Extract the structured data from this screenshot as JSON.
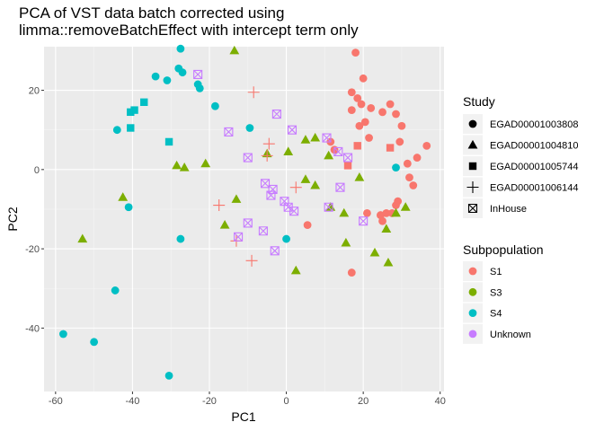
{
  "chart_data": {
    "type": "scatter",
    "title_lines": [
      "PCA of VST data batch corrected using",
      "limma::removeBatchEffect with intercept term only"
    ],
    "xlabel": "PC1",
    "ylabel": "PC2",
    "xlim": [
      -63,
      41
    ],
    "ylim": [
      -56,
      31
    ],
    "xticks": [
      -60,
      -40,
      -20,
      0,
      20,
      40
    ],
    "yticks": [
      -40,
      -20,
      0,
      20
    ],
    "xtick_labels": [
      "-60",
      "-40",
      "-20",
      "0",
      "20",
      "40"
    ],
    "ytick_labels": [
      "-40",
      "-20",
      "0",
      "20"
    ],
    "grid": true,
    "legend_position": "right",
    "shape_legend": {
      "title": "Study",
      "entries": [
        {
          "label": "EGAD00001003808",
          "shape": "circle"
        },
        {
          "label": "EGAD00001004810",
          "shape": "triangle"
        },
        {
          "label": "EGAD00001005744",
          "shape": "square"
        },
        {
          "label": "EGAD00001006144",
          "shape": "plus"
        },
        {
          "label": "InHouse",
          "shape": "boxx"
        }
      ]
    },
    "color_legend": {
      "title": "Subpopulation",
      "entries": [
        {
          "label": "S1",
          "color": "#F8766D"
        },
        {
          "label": "S3",
          "color": "#7CAE00"
        },
        {
          "label": "S4",
          "color": "#00BFC4"
        },
        {
          "label": "Unknown",
          "color": "#C77CFF"
        }
      ]
    },
    "points": [
      {
        "x": 18,
        "y": 29.5,
        "study": "EGAD00001003808",
        "sub": "S1"
      },
      {
        "x": 20,
        "y": 23,
        "study": "EGAD00001003808",
        "sub": "S1"
      },
      {
        "x": 17,
        "y": 19.5,
        "study": "EGAD00001003808",
        "sub": "S1"
      },
      {
        "x": 18.5,
        "y": 18,
        "study": "EGAD00001003808",
        "sub": "S1"
      },
      {
        "x": 19.5,
        "y": 16.5,
        "study": "EGAD00001003808",
        "sub": "S1"
      },
      {
        "x": 17,
        "y": 15,
        "study": "EGAD00001003808",
        "sub": "S1"
      },
      {
        "x": 22,
        "y": 15.5,
        "study": "EGAD00001003808",
        "sub": "S1"
      },
      {
        "x": 25,
        "y": 14.5,
        "study": "EGAD00001003808",
        "sub": "S1"
      },
      {
        "x": 27,
        "y": 16.5,
        "study": "EGAD00001003808",
        "sub": "S1"
      },
      {
        "x": 28.5,
        "y": 14,
        "study": "EGAD00001003808",
        "sub": "S1"
      },
      {
        "x": 20.5,
        "y": 12,
        "study": "EGAD00001003808",
        "sub": "S1"
      },
      {
        "x": 19,
        "y": 11,
        "study": "EGAD00001003808",
        "sub": "S1"
      },
      {
        "x": 30,
        "y": 11,
        "study": "EGAD00001003808",
        "sub": "S1"
      },
      {
        "x": 29.5,
        "y": 7,
        "study": "EGAD00001003808",
        "sub": "S1"
      },
      {
        "x": 21.5,
        "y": 8,
        "study": "EGAD00001003808",
        "sub": "S1"
      },
      {
        "x": 36.5,
        "y": 6,
        "study": "EGAD00001003808",
        "sub": "S1"
      },
      {
        "x": 34,
        "y": 3,
        "study": "EGAD00001003808",
        "sub": "S1"
      },
      {
        "x": 31.5,
        "y": 1.5,
        "study": "EGAD00001003808",
        "sub": "S1"
      },
      {
        "x": 32,
        "y": -2,
        "study": "EGAD00001003808",
        "sub": "S1"
      },
      {
        "x": 33,
        "y": -4,
        "study": "EGAD00001003808",
        "sub": "S1"
      },
      {
        "x": 29,
        "y": -8,
        "study": "EGAD00001003808",
        "sub": "S1"
      },
      {
        "x": 28.5,
        "y": -9,
        "study": "EGAD00001003808",
        "sub": "S1"
      },
      {
        "x": 21,
        "y": -11,
        "study": "EGAD00001003808",
        "sub": "S1"
      },
      {
        "x": 24.5,
        "y": -11.5,
        "study": "EGAD00001003808",
        "sub": "S1"
      },
      {
        "x": 26,
        "y": -11,
        "study": "EGAD00001003808",
        "sub": "S1"
      },
      {
        "x": 27.5,
        "y": -11,
        "study": "EGAD00001003808",
        "sub": "S1"
      },
      {
        "x": 25,
        "y": -13,
        "study": "EGAD00001003808",
        "sub": "S1"
      },
      {
        "x": 11.5,
        "y": 7,
        "study": "EGAD00001003808",
        "sub": "S1"
      },
      {
        "x": 12.5,
        "y": 5,
        "study": "EGAD00001003808",
        "sub": "S1"
      },
      {
        "x": 5.5,
        "y": -14,
        "study": "EGAD00001003808",
        "sub": "S1"
      },
      {
        "x": 17,
        "y": -26,
        "study": "EGAD00001003808",
        "sub": "S1"
      },
      {
        "x": -27.5,
        "y": 30.5,
        "study": "EGAD00001003808",
        "sub": "S4"
      },
      {
        "x": -34,
        "y": 23.5,
        "study": "EGAD00001003808",
        "sub": "S4"
      },
      {
        "x": -31,
        "y": 22.5,
        "study": "EGAD00001003808",
        "sub": "S4"
      },
      {
        "x": -28,
        "y": 25.5,
        "study": "EGAD00001003808",
        "sub": "S4"
      },
      {
        "x": -27,
        "y": 24.5,
        "study": "EGAD00001003808",
        "sub": "S4"
      },
      {
        "x": -23,
        "y": 21.5,
        "study": "EGAD00001003808",
        "sub": "S4"
      },
      {
        "x": -22.5,
        "y": 20.5,
        "study": "EGAD00001003808",
        "sub": "S4"
      },
      {
        "x": -18.5,
        "y": 16,
        "study": "EGAD00001003808",
        "sub": "S4"
      },
      {
        "x": -9.5,
        "y": 10.5,
        "study": "EGAD00001003808",
        "sub": "S4"
      },
      {
        "x": -44,
        "y": 10,
        "study": "EGAD00001003808",
        "sub": "S4"
      },
      {
        "x": -41,
        "y": -9.5,
        "study": "EGAD00001003808",
        "sub": "S4"
      },
      {
        "x": -27.5,
        "y": -17.5,
        "study": "EGAD00001003808",
        "sub": "S4"
      },
      {
        "x": 0,
        "y": -17.5,
        "study": "EGAD00001003808",
        "sub": "S4"
      },
      {
        "x": -44.5,
        "y": -30.5,
        "study": "EGAD00001003808",
        "sub": "S4"
      },
      {
        "x": -58,
        "y": -41.5,
        "study": "EGAD00001003808",
        "sub": "S4"
      },
      {
        "x": -50,
        "y": -43.5,
        "study": "EGAD00001003808",
        "sub": "S4"
      },
      {
        "x": -30.5,
        "y": -52,
        "study": "EGAD00001003808",
        "sub": "S4"
      },
      {
        "x": 28.5,
        "y": 0.5,
        "study": "EGAD00001003808",
        "sub": "S4"
      },
      {
        "x": -13.5,
        "y": 30,
        "study": "EGAD00001004810",
        "sub": "S3"
      },
      {
        "x": 5,
        "y": 7.5,
        "study": "EGAD00001004810",
        "sub": "S3"
      },
      {
        "x": 7.5,
        "y": 8,
        "study": "EGAD00001004810",
        "sub": "S3"
      },
      {
        "x": 0.5,
        "y": 4.5,
        "study": "EGAD00001004810",
        "sub": "S3"
      },
      {
        "x": -5,
        "y": 4,
        "study": "EGAD00001004810",
        "sub": "S3"
      },
      {
        "x": 11,
        "y": 3.5,
        "study": "EGAD00001004810",
        "sub": "S3"
      },
      {
        "x": -28.5,
        "y": 1,
        "study": "EGAD00001004810",
        "sub": "S3"
      },
      {
        "x": -26.5,
        "y": 0.5,
        "study": "EGAD00001004810",
        "sub": "S3"
      },
      {
        "x": -21,
        "y": 1.5,
        "study": "EGAD00001004810",
        "sub": "S3"
      },
      {
        "x": 5,
        "y": -2.5,
        "study": "EGAD00001004810",
        "sub": "S3"
      },
      {
        "x": 7.5,
        "y": -4,
        "study": "EGAD00001004810",
        "sub": "S3"
      },
      {
        "x": 19,
        "y": -2,
        "study": "EGAD00001004810",
        "sub": "S3"
      },
      {
        "x": -42.5,
        "y": -7,
        "study": "EGAD00001004810",
        "sub": "S3"
      },
      {
        "x": -13,
        "y": -7.5,
        "study": "EGAD00001004810",
        "sub": "S3"
      },
      {
        "x": -16,
        "y": -14,
        "study": "EGAD00001004810",
        "sub": "S3"
      },
      {
        "x": 11.5,
        "y": -9.5,
        "study": "EGAD00001004810",
        "sub": "S3"
      },
      {
        "x": 15,
        "y": -11,
        "study": "EGAD00001004810",
        "sub": "S3"
      },
      {
        "x": 28.5,
        "y": -11,
        "study": "EGAD00001004810",
        "sub": "S3"
      },
      {
        "x": 31,
        "y": -9.5,
        "study": "EGAD00001004810",
        "sub": "S3"
      },
      {
        "x": 26,
        "y": -15,
        "study": "EGAD00001004810",
        "sub": "S3"
      },
      {
        "x": 15.5,
        "y": -18.5,
        "study": "EGAD00001004810",
        "sub": "S3"
      },
      {
        "x": -53,
        "y": -17.5,
        "study": "EGAD00001004810",
        "sub": "S3"
      },
      {
        "x": 23,
        "y": -21,
        "study": "EGAD00001004810",
        "sub": "S3"
      },
      {
        "x": 26.5,
        "y": -23.5,
        "study": "EGAD00001004810",
        "sub": "S3"
      },
      {
        "x": 2.5,
        "y": -25.5,
        "study": "EGAD00001004810",
        "sub": "S3"
      },
      {
        "x": -37,
        "y": 17,
        "study": "EGAD00001005744",
        "sub": "S4"
      },
      {
        "x": -39.5,
        "y": 15,
        "study": "EGAD00001005744",
        "sub": "S4"
      },
      {
        "x": -40.5,
        "y": 14.5,
        "study": "EGAD00001005744",
        "sub": "S4"
      },
      {
        "x": -40.5,
        "y": 10.5,
        "study": "EGAD00001005744",
        "sub": "S4"
      },
      {
        "x": -30.5,
        "y": 7,
        "study": "EGAD00001005744",
        "sub": "S4"
      },
      {
        "x": 18.5,
        "y": 6,
        "study": "EGAD00001005744",
        "sub": "S1"
      },
      {
        "x": 27,
        "y": 5.5,
        "study": "EGAD00001005744",
        "sub": "S1"
      },
      {
        "x": 16,
        "y": 1,
        "study": "EGAD00001005744",
        "sub": "S1"
      },
      {
        "x": -8.5,
        "y": 19.5,
        "study": "EGAD00001006144",
        "sub": "S1"
      },
      {
        "x": -4.5,
        "y": 6.5,
        "study": "EGAD00001006144",
        "sub": "S1"
      },
      {
        "x": -5,
        "y": 3.5,
        "study": "EGAD00001006144",
        "sub": "S1"
      },
      {
        "x": 2.5,
        "y": -4.5,
        "study": "EGAD00001006144",
        "sub": "S1"
      },
      {
        "x": -17.5,
        "y": -9,
        "study": "EGAD00001006144",
        "sub": "S1"
      },
      {
        "x": -13,
        "y": -18,
        "study": "EGAD00001006144",
        "sub": "S1"
      },
      {
        "x": -9,
        "y": -23,
        "study": "EGAD00001006144",
        "sub": "S1"
      },
      {
        "x": -23,
        "y": 24,
        "study": "InHouse",
        "sub": "Unknown"
      },
      {
        "x": -2.5,
        "y": 14,
        "study": "InHouse",
        "sub": "Unknown"
      },
      {
        "x": 1.5,
        "y": 10,
        "study": "InHouse",
        "sub": "Unknown"
      },
      {
        "x": -15,
        "y": 9.5,
        "study": "InHouse",
        "sub": "Unknown"
      },
      {
        "x": 10.5,
        "y": 8,
        "study": "InHouse",
        "sub": "Unknown"
      },
      {
        "x": 13.5,
        "y": 4.5,
        "study": "InHouse",
        "sub": "Unknown"
      },
      {
        "x": 16,
        "y": 3,
        "study": "InHouse",
        "sub": "Unknown"
      },
      {
        "x": -10,
        "y": 3,
        "study": "InHouse",
        "sub": "Unknown"
      },
      {
        "x": -5.5,
        "y": -3.5,
        "study": "InHouse",
        "sub": "Unknown"
      },
      {
        "x": -3.5,
        "y": -5,
        "study": "InHouse",
        "sub": "Unknown"
      },
      {
        "x": -4,
        "y": -6.5,
        "study": "InHouse",
        "sub": "Unknown"
      },
      {
        "x": -0.5,
        "y": -8,
        "study": "InHouse",
        "sub": "Unknown"
      },
      {
        "x": 0.5,
        "y": -9.5,
        "study": "InHouse",
        "sub": "Unknown"
      },
      {
        "x": 2,
        "y": -10.5,
        "study": "InHouse",
        "sub": "Unknown"
      },
      {
        "x": 14,
        "y": -4.5,
        "study": "InHouse",
        "sub": "Unknown"
      },
      {
        "x": 11,
        "y": -9.5,
        "study": "InHouse",
        "sub": "Unknown"
      },
      {
        "x": 20,
        "y": -13,
        "study": "InHouse",
        "sub": "Unknown"
      },
      {
        "x": -10,
        "y": -13.5,
        "study": "InHouse",
        "sub": "Unknown"
      },
      {
        "x": -6,
        "y": -15.5,
        "study": "InHouse",
        "sub": "Unknown"
      },
      {
        "x": -12.5,
        "y": -17,
        "study": "InHouse",
        "sub": "Unknown"
      },
      {
        "x": -3,
        "y": -20.5,
        "study": "InHouse",
        "sub": "Unknown"
      }
    ]
  }
}
